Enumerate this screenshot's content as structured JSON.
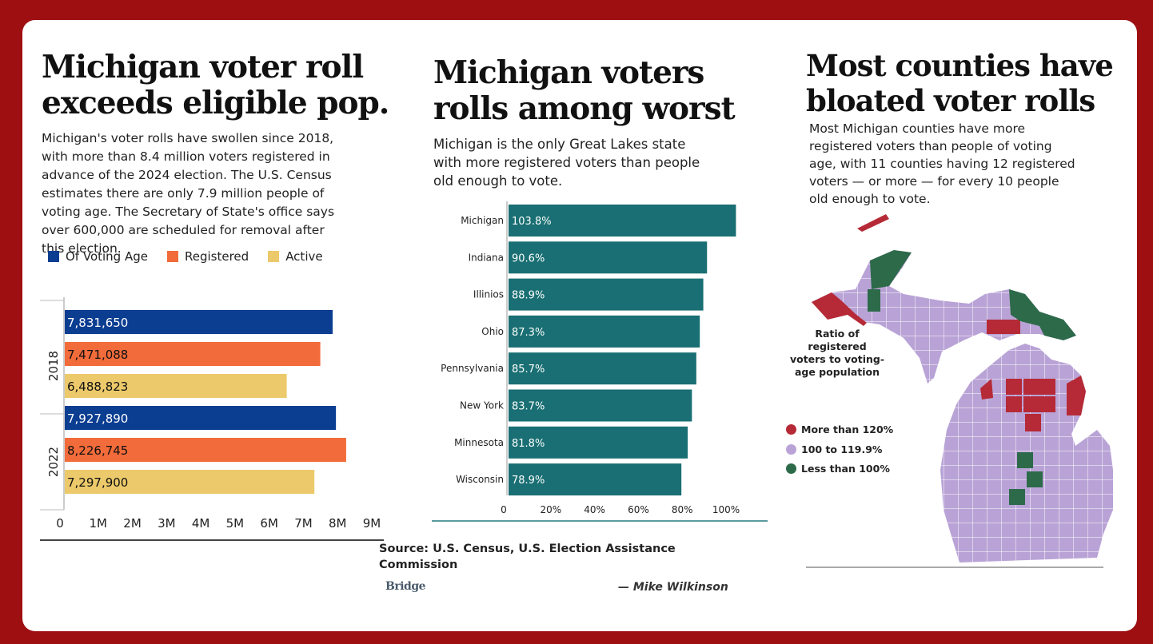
{
  "left": {
    "title_lines": [
      "Michigan voter roll",
      "exceeds eligible pop."
    ],
    "desc_lines": [
      "Michigan's voter rolls have swollen since 2018,",
      "with more than 8.4 million voters registered in",
      "advance of the 2024 election. The U.S. Census",
      "estimates there are only 7.9 million people of",
      "voting age. The Secretary of State's office says",
      "over 600,000 are scheduled for removal after",
      "this election."
    ]
  },
  "middle": {
    "title_lines": [
      "Michigan voters",
      "rolls among worst"
    ],
    "desc_lines": [
      "Michigan is the only Great Lakes state",
      "with more registered voters than people",
      "old enough to vote."
    ]
  },
  "right": {
    "title_lines": [
      "Most counties have",
      "bloated voter rolls"
    ],
    "desc_lines": [
      "Most Michigan counties have more",
      "registered voters than people of voting",
      "age, with 11 counties having 12 registered",
      "voters — or more — for every 10 people",
      "old enough to vote."
    ]
  },
  "source_lines": [
    "Source: U.S. Census, U.S. Election Assistance",
    "Commission"
  ],
  "brand": "Bridge",
  "credit": "— Mike Wilkinson",
  "chart_data": [
    {
      "type": "bar",
      "orientation": "horizontal",
      "categories": [
        "2018",
        "2022"
      ],
      "series": [
        {
          "name": "Of Voting Age",
          "color": "#0b3d91",
          "values": [
            7831650,
            7927890
          ],
          "labels": [
            "7,831,650",
            "7,927,890"
          ]
        },
        {
          "name": "Registered",
          "color": "#f26b3a",
          "values": [
            7471088,
            8226745
          ],
          "labels": [
            "7,471,088",
            "8,226,745"
          ]
        },
        {
          "name": "Active",
          "color": "#ecc96a",
          "values": [
            6488823,
            7297900
          ],
          "labels": [
            "6,488,823",
            "7,297,900"
          ]
        }
      ],
      "xlim": [
        0,
        9000000
      ],
      "x_ticks": [
        0,
        1000000,
        2000000,
        3000000,
        4000000,
        5000000,
        6000000,
        7000000,
        8000000,
        9000000
      ],
      "x_tick_labels": [
        "0",
        "1M",
        "2M",
        "3M",
        "4M",
        "5M",
        "6M",
        "7M",
        "8M",
        "9M"
      ],
      "legend_placement": "top"
    },
    {
      "type": "bar",
      "orientation": "horizontal",
      "color": "#196f73",
      "categories": [
        "Michigan",
        "Indiana",
        "Illinios",
        "Ohio",
        "Pennsylvania",
        "New York",
        "Minnesota",
        "Wisconsin"
      ],
      "values": [
        103.8,
        90.6,
        88.9,
        87.3,
        85.7,
        83.7,
        81.8,
        78.9
      ],
      "labels": [
        "103.8%",
        "90.6%",
        "88.9%",
        "87.3%",
        "85.7%",
        "83.7%",
        "81.8%",
        "78.9%"
      ],
      "xlim": [
        0,
        100
      ],
      "x_ticks": [
        0,
        20,
        40,
        60,
        80,
        100
      ],
      "x_tick_labels": [
        "0",
        "20%",
        "40%",
        "60%",
        "80%",
        "100%"
      ]
    }
  ],
  "map": {
    "legend_title_lines": [
      "Ratio of",
      "registered",
      "voters to voting-",
      "age population"
    ],
    "legend": [
      {
        "label": "More than 120%",
        "color": "#b52a36"
      },
      {
        "label": "100 to 119.9%",
        "color": "#b9a3d6"
      },
      {
        "label": "Less than 100%",
        "color": "#2d6a4a"
      }
    ]
  }
}
